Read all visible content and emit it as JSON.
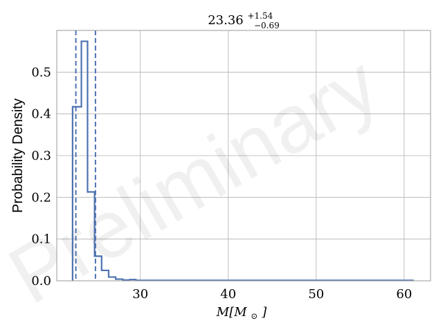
{
  "chart_data": {
    "type": "histogram",
    "title": {
      "main": "23.36",
      "sup": "+1.54",
      "sub": "−0.69"
    },
    "xlabel": {
      "base": "M[M",
      "sub": "⊙",
      "close": "]"
    },
    "ylabel": "Probability Density",
    "xlim": [
      20.5,
      63.0
    ],
    "ylim": [
      0.0,
      0.6
    ],
    "xticks": [
      30,
      40,
      50,
      60
    ],
    "xtick_labels": [
      "30",
      "40",
      "50",
      "60"
    ],
    "yticks": [
      0.0,
      0.1,
      0.2,
      0.3,
      0.4,
      0.5
    ],
    "ytick_labels": [
      "0.0",
      "0.1",
      "0.2",
      "0.3",
      "0.4",
      "0.5"
    ],
    "grid": true,
    "series": [
      {
        "bin_edges": [
          22.3,
          22.8,
          23.3,
          24.0,
          24.8,
          25.6,
          26.4,
          27.2,
          28.0,
          28.8,
          29.5,
          61.0
        ],
        "values": [
          0.417,
          0.417,
          0.574,
          0.213,
          0.059,
          0.025,
          0.009,
          0.004,
          0.002,
          0.003,
          0.001
        ],
        "color": "#4c72b0"
      }
    ],
    "vlines": [
      22.67,
      24.9
    ],
    "vline_color": "#4c72b0",
    "watermark": "Preliminary"
  }
}
